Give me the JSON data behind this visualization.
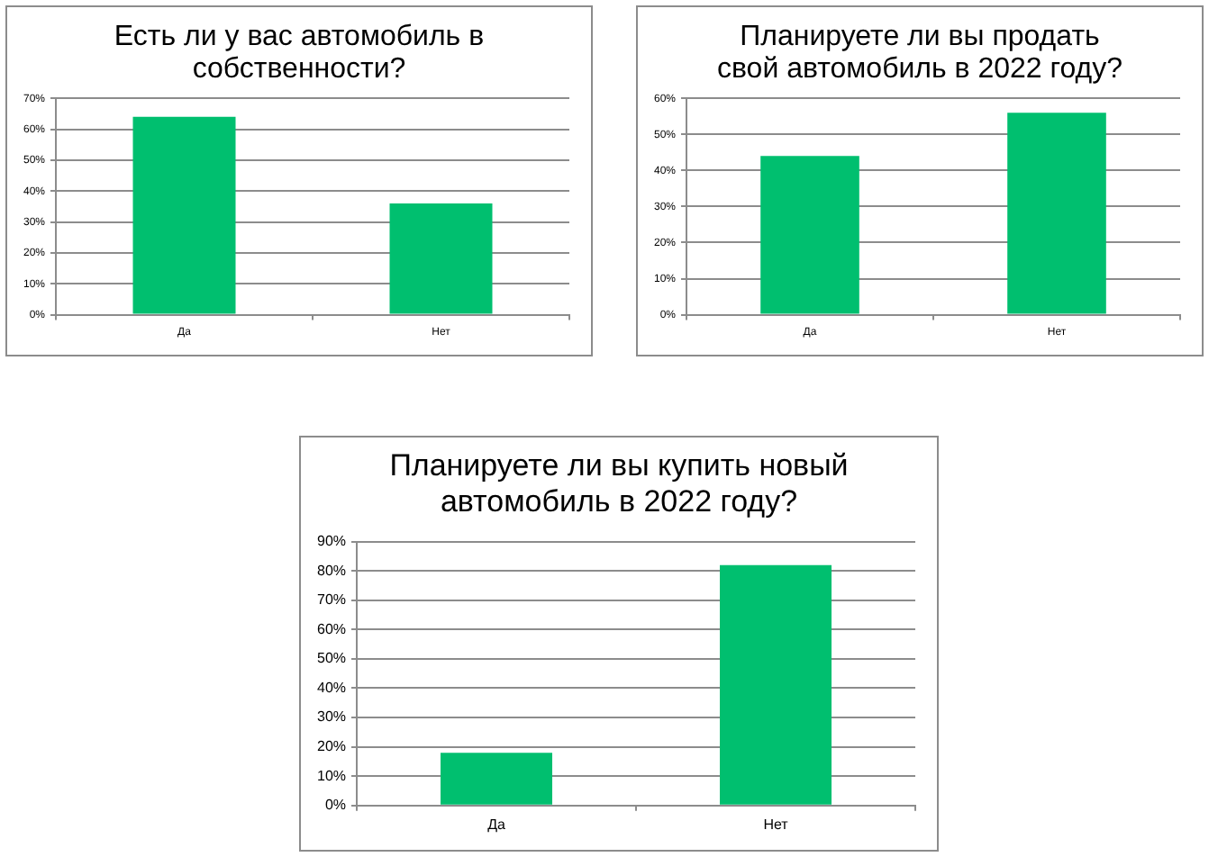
{
  "chart_data": [
    {
      "type": "bar",
      "title": "Есть ли у вас автомобиль в собственности?",
      "categories": [
        "Да",
        "Нет"
      ],
      "values": [
        64,
        36
      ],
      "color": "#00bf6f",
      "ylim": [
        0,
        70
      ],
      "yticks": [
        {
          "value": 0,
          "label": "0%"
        },
        {
          "value": 10,
          "label": "10%"
        },
        {
          "value": 20,
          "label": "20%"
        },
        {
          "value": 30,
          "label": "30%"
        },
        {
          "value": 40,
          "label": "40%"
        },
        {
          "value": 50,
          "label": "50%"
        },
        {
          "value": 60,
          "label": "60%"
        },
        {
          "value": 70,
          "label": "70%"
        }
      ],
      "grid": "y",
      "legend": false
    },
    {
      "type": "bar",
      "title": "Планируете ли вы продать свой автомобиль в 2022 году?",
      "categories": [
        "Да",
        "Нет"
      ],
      "values": [
        44,
        56
      ],
      "color": "#00bf6f",
      "ylim": [
        0,
        60
      ],
      "yticks": [
        {
          "value": 0,
          "label": "0%"
        },
        {
          "value": 10,
          "label": "10%"
        },
        {
          "value": 20,
          "label": "20%"
        },
        {
          "value": 30,
          "label": "30%"
        },
        {
          "value": 40,
          "label": "40%"
        },
        {
          "value": 50,
          "label": "50%"
        },
        {
          "value": 60,
          "label": "60%"
        }
      ],
      "grid": "y",
      "legend": false
    },
    {
      "type": "bar",
      "title": "Планируете ли вы купить новый автомобиль в 2022 году?",
      "categories": [
        "Да",
        "Нет"
      ],
      "values": [
        18,
        82
      ],
      "color": "#00bf6f",
      "ylim": [
        0,
        90
      ],
      "yticks": [
        {
          "value": 0,
          "label": "0%"
        },
        {
          "value": 10,
          "label": "10%"
        },
        {
          "value": 20,
          "label": "20%"
        },
        {
          "value": 30,
          "label": "30%"
        },
        {
          "value": 40,
          "label": "40%"
        },
        {
          "value": 50,
          "label": "50%"
        },
        {
          "value": 60,
          "label": "60%"
        },
        {
          "value": 70,
          "label": "70%"
        },
        {
          "value": 80,
          "label": "80%"
        },
        {
          "value": 90,
          "label": "90%"
        }
      ],
      "grid": "y",
      "legend": false
    }
  ]
}
